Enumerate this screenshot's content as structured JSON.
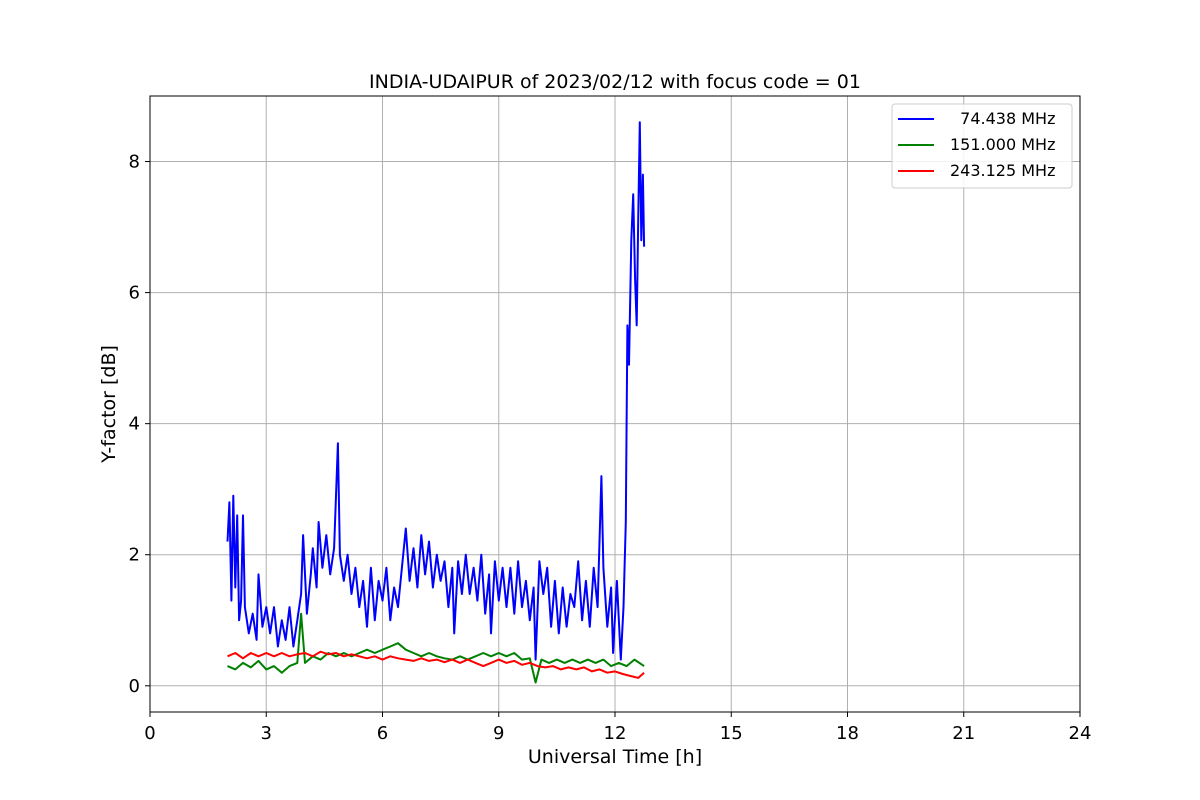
{
  "chart_data": {
    "type": "line",
    "title": "INDIA-UDAIPUR of 2023/02/12 with focus code = 01",
    "xlabel": "Universal Time [h]",
    "ylabel": "Y-factor [dB]",
    "xlim": [
      0,
      24
    ],
    "ylim": [
      -0.4,
      9.0
    ],
    "xticks": [
      0,
      3,
      6,
      9,
      12,
      15,
      18,
      21,
      24
    ],
    "yticks": [
      0,
      2,
      4,
      6,
      8
    ],
    "grid": true,
    "legend_position": "top-right",
    "series": [
      {
        "name": "  74.438 MHz",
        "color": "#0000ff",
        "points": [
          [
            2.0,
            2.2
          ],
          [
            2.05,
            2.8
          ],
          [
            2.1,
            1.3
          ],
          [
            2.15,
            2.9
          ],
          [
            2.2,
            1.5
          ],
          [
            2.25,
            2.6
          ],
          [
            2.3,
            1.0
          ],
          [
            2.35,
            1.3
          ],
          [
            2.4,
            2.6
          ],
          [
            2.45,
            1.2
          ],
          [
            2.55,
            0.8
          ],
          [
            2.65,
            1.1
          ],
          [
            2.75,
            0.7
          ],
          [
            2.8,
            1.7
          ],
          [
            2.9,
            0.9
          ],
          [
            3.0,
            1.2
          ],
          [
            3.1,
            0.8
          ],
          [
            3.2,
            1.2
          ],
          [
            3.3,
            0.6
          ],
          [
            3.4,
            1.0
          ],
          [
            3.5,
            0.7
          ],
          [
            3.6,
            1.2
          ],
          [
            3.7,
            0.6
          ],
          [
            3.8,
            1.0
          ],
          [
            3.9,
            1.4
          ],
          [
            3.95,
            2.3
          ],
          [
            4.05,
            1.1
          ],
          [
            4.15,
            1.7
          ],
          [
            4.2,
            2.1
          ],
          [
            4.3,
            1.5
          ],
          [
            4.35,
            2.5
          ],
          [
            4.45,
            1.8
          ],
          [
            4.55,
            2.3
          ],
          [
            4.65,
            1.7
          ],
          [
            4.75,
            2.1
          ],
          [
            4.85,
            3.7
          ],
          [
            4.9,
            2.0
          ],
          [
            5.0,
            1.6
          ],
          [
            5.1,
            2.0
          ],
          [
            5.2,
            1.4
          ],
          [
            5.3,
            1.8
          ],
          [
            5.4,
            1.2
          ],
          [
            5.5,
            1.6
          ],
          [
            5.6,
            0.9
          ],
          [
            5.7,
            1.8
          ],
          [
            5.8,
            1.0
          ],
          [
            5.9,
            1.6
          ],
          [
            6.0,
            1.3
          ],
          [
            6.1,
            1.8
          ],
          [
            6.2,
            1.0
          ],
          [
            6.3,
            1.5
          ],
          [
            6.4,
            1.2
          ],
          [
            6.5,
            1.8
          ],
          [
            6.6,
            2.4
          ],
          [
            6.7,
            1.6
          ],
          [
            6.8,
            2.1
          ],
          [
            6.9,
            1.5
          ],
          [
            7.0,
            2.3
          ],
          [
            7.1,
            1.7
          ],
          [
            7.2,
            2.2
          ],
          [
            7.3,
            1.5
          ],
          [
            7.4,
            2.0
          ],
          [
            7.5,
            1.6
          ],
          [
            7.6,
            1.9
          ],
          [
            7.7,
            1.2
          ],
          [
            7.8,
            1.8
          ],
          [
            7.85,
            0.8
          ],
          [
            7.95,
            1.9
          ],
          [
            8.05,
            1.4
          ],
          [
            8.15,
            2.0
          ],
          [
            8.25,
            1.4
          ],
          [
            8.35,
            1.8
          ],
          [
            8.45,
            1.3
          ],
          [
            8.55,
            2.0
          ],
          [
            8.65,
            1.1
          ],
          [
            8.75,
            1.7
          ],
          [
            8.8,
            0.8
          ],
          [
            8.9,
            1.9
          ],
          [
            9.0,
            1.3
          ],
          [
            9.1,
            1.8
          ],
          [
            9.2,
            1.2
          ],
          [
            9.3,
            1.8
          ],
          [
            9.4,
            1.1
          ],
          [
            9.5,
            1.9
          ],
          [
            9.6,
            1.2
          ],
          [
            9.7,
            1.6
          ],
          [
            9.8,
            1.0
          ],
          [
            9.9,
            1.5
          ],
          [
            9.95,
            0.4
          ],
          [
            10.05,
            1.9
          ],
          [
            10.15,
            1.4
          ],
          [
            10.25,
            1.8
          ],
          [
            10.35,
            0.9
          ],
          [
            10.45,
            1.6
          ],
          [
            10.55,
            0.8
          ],
          [
            10.65,
            1.5
          ],
          [
            10.75,
            0.9
          ],
          [
            10.85,
            1.4
          ],
          [
            10.95,
            1.2
          ],
          [
            11.05,
            1.9
          ],
          [
            11.15,
            1.0
          ],
          [
            11.25,
            1.6
          ],
          [
            11.35,
            0.9
          ],
          [
            11.45,
            1.8
          ],
          [
            11.55,
            1.2
          ],
          [
            11.65,
            3.2
          ],
          [
            11.7,
            1.8
          ],
          [
            11.8,
            0.9
          ],
          [
            11.9,
            1.5
          ],
          [
            11.95,
            0.5
          ],
          [
            12.05,
            1.6
          ],
          [
            12.15,
            0.4
          ],
          [
            12.22,
            1.2
          ],
          [
            12.28,
            2.5
          ],
          [
            12.32,
            5.5
          ],
          [
            12.36,
            4.9
          ],
          [
            12.42,
            6.8
          ],
          [
            12.47,
            7.5
          ],
          [
            12.52,
            6.2
          ],
          [
            12.56,
            5.5
          ],
          [
            12.6,
            7.2
          ],
          [
            12.64,
            8.6
          ],
          [
            12.68,
            6.8
          ],
          [
            12.72,
            7.8
          ],
          [
            12.75,
            6.7
          ]
        ]
      },
      {
        "name": "151.000 MHz",
        "color": "#008000",
        "points": [
          [
            2.0,
            0.3
          ],
          [
            2.2,
            0.25
          ],
          [
            2.4,
            0.35
          ],
          [
            2.6,
            0.28
          ],
          [
            2.8,
            0.38
          ],
          [
            3.0,
            0.25
          ],
          [
            3.2,
            0.3
          ],
          [
            3.4,
            0.2
          ],
          [
            3.6,
            0.3
          ],
          [
            3.8,
            0.35
          ],
          [
            3.9,
            1.1
          ],
          [
            4.0,
            0.35
          ],
          [
            4.2,
            0.45
          ],
          [
            4.4,
            0.4
          ],
          [
            4.6,
            0.5
          ],
          [
            4.8,
            0.45
          ],
          [
            5.0,
            0.5
          ],
          [
            5.2,
            0.45
          ],
          [
            5.4,
            0.5
          ],
          [
            5.6,
            0.55
          ],
          [
            5.8,
            0.5
          ],
          [
            6.0,
            0.55
          ],
          [
            6.2,
            0.6
          ],
          [
            6.4,
            0.65
          ],
          [
            6.6,
            0.55
          ],
          [
            6.8,
            0.5
          ],
          [
            7.0,
            0.45
          ],
          [
            7.2,
            0.5
          ],
          [
            7.4,
            0.45
          ],
          [
            7.6,
            0.42
          ],
          [
            7.8,
            0.4
          ],
          [
            8.0,
            0.45
          ],
          [
            8.2,
            0.4
          ],
          [
            8.4,
            0.45
          ],
          [
            8.6,
            0.5
          ],
          [
            8.8,
            0.45
          ],
          [
            9.0,
            0.5
          ],
          [
            9.2,
            0.45
          ],
          [
            9.4,
            0.5
          ],
          [
            9.6,
            0.4
          ],
          [
            9.8,
            0.42
          ],
          [
            9.95,
            0.05
          ],
          [
            10.1,
            0.4
          ],
          [
            10.3,
            0.35
          ],
          [
            10.5,
            0.4
          ],
          [
            10.7,
            0.35
          ],
          [
            10.9,
            0.4
          ],
          [
            11.1,
            0.35
          ],
          [
            11.3,
            0.4
          ],
          [
            11.5,
            0.35
          ],
          [
            11.7,
            0.4
          ],
          [
            11.9,
            0.3
          ],
          [
            12.1,
            0.35
          ],
          [
            12.3,
            0.3
          ],
          [
            12.5,
            0.4
          ],
          [
            12.75,
            0.3
          ]
        ]
      },
      {
        "name": "243.125 MHz",
        "color": "#ff0000",
        "points": [
          [
            2.0,
            0.45
          ],
          [
            2.2,
            0.5
          ],
          [
            2.4,
            0.42
          ],
          [
            2.6,
            0.5
          ],
          [
            2.8,
            0.45
          ],
          [
            3.0,
            0.5
          ],
          [
            3.2,
            0.45
          ],
          [
            3.4,
            0.5
          ],
          [
            3.6,
            0.45
          ],
          [
            3.8,
            0.48
          ],
          [
            4.0,
            0.5
          ],
          [
            4.2,
            0.45
          ],
          [
            4.4,
            0.52
          ],
          [
            4.6,
            0.48
          ],
          [
            4.8,
            0.5
          ],
          [
            5.0,
            0.45
          ],
          [
            5.2,
            0.48
          ],
          [
            5.4,
            0.45
          ],
          [
            5.6,
            0.42
          ],
          [
            5.8,
            0.45
          ],
          [
            6.0,
            0.4
          ],
          [
            6.2,
            0.45
          ],
          [
            6.4,
            0.42
          ],
          [
            6.6,
            0.4
          ],
          [
            6.8,
            0.38
          ],
          [
            7.0,
            0.42
          ],
          [
            7.2,
            0.38
          ],
          [
            7.4,
            0.4
          ],
          [
            7.6,
            0.36
          ],
          [
            7.8,
            0.4
          ],
          [
            8.0,
            0.35
          ],
          [
            8.2,
            0.4
          ],
          [
            8.4,
            0.35
          ],
          [
            8.6,
            0.3
          ],
          [
            8.8,
            0.35
          ],
          [
            9.0,
            0.4
          ],
          [
            9.2,
            0.35
          ],
          [
            9.4,
            0.38
          ],
          [
            9.6,
            0.32
          ],
          [
            9.8,
            0.35
          ],
          [
            10.0,
            0.3
          ],
          [
            10.2,
            0.28
          ],
          [
            10.4,
            0.3
          ],
          [
            10.6,
            0.25
          ],
          [
            10.8,
            0.28
          ],
          [
            11.0,
            0.25
          ],
          [
            11.2,
            0.28
          ],
          [
            11.4,
            0.22
          ],
          [
            11.6,
            0.25
          ],
          [
            11.8,
            0.2
          ],
          [
            12.0,
            0.22
          ],
          [
            12.2,
            0.18
          ],
          [
            12.4,
            0.15
          ],
          [
            12.6,
            0.12
          ],
          [
            12.75,
            0.2
          ]
        ]
      }
    ]
  }
}
